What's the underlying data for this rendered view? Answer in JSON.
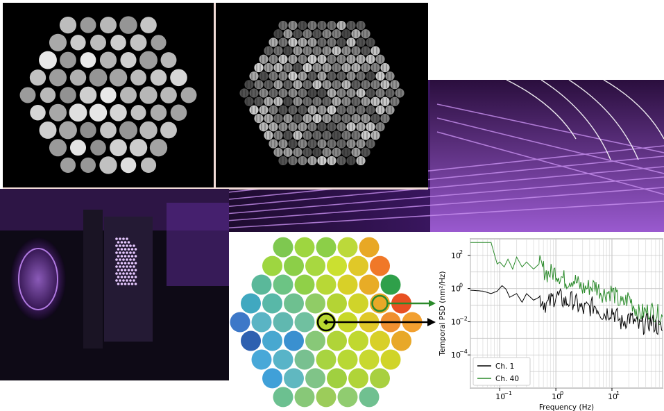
{
  "figure": {
    "intensity_panel": {
      "description_icon": "hexagonal-fiber-bundle-intensity"
    },
    "speckle_panel": {
      "description_icon": "hexagonal-fiber-bundle-fringes"
    },
    "lab_photo": {
      "description_icon": "optical-bench-photo"
    },
    "colors": {
      "purple": "#7a2fc0",
      "ch1": "#000000",
      "ch40": "#2a8a2a",
      "frame": "#f3ddd8"
    }
  },
  "chart_data": {
    "type": "line",
    "title": "",
    "xlabel": "Frequency (Hz)",
    "ylabel": "Temporal PSD (nm²/Hz)",
    "xscale": "log",
    "yscale": "log",
    "xlim": [
      0.03,
      80
    ],
    "ylim": [
      1e-06,
      1000
    ],
    "xticks": [
      {
        "v": 0.1,
        "label": "10",
        "exp": "−1"
      },
      {
        "v": 1,
        "label": "10",
        "exp": "0"
      },
      {
        "v": 10,
        "label": "10",
        "exp": "1"
      }
    ],
    "yticks": [
      {
        "v": 100,
        "label": "10",
        "exp": "2"
      },
      {
        "v": 1,
        "label": "10",
        "exp": "0"
      },
      {
        "v": 0.01,
        "label": "10",
        "exp": "−2"
      },
      {
        "v": 0.0001,
        "label": "10",
        "exp": "−4"
      }
    ],
    "grid": true,
    "legend_position": "bottom-left",
    "series": [
      {
        "name": "Ch. 1",
        "color": "#000000",
        "x": [
          0.03,
          0.05,
          0.07,
          0.09,
          0.11,
          0.13,
          0.15,
          0.2,
          0.25,
          0.3,
          0.4,
          0.5,
          0.7,
          1,
          1.5,
          2,
          3,
          5,
          7,
          10,
          15,
          20,
          30,
          50,
          80
        ],
        "y": [
          0.8,
          0.7,
          0.5,
          0.7,
          1.5,
          0.9,
          0.3,
          0.5,
          0.15,
          0.5,
          0.2,
          0.3,
          0.1,
          0.4,
          0.15,
          0.2,
          0.05,
          0.1,
          0.03,
          0.05,
          0.008,
          0.02,
          0.005,
          0.01,
          0.003
        ]
      },
      {
        "name": "Ch. 40",
        "color": "#2a8a2a",
        "x": [
          0.03,
          0.05,
          0.07,
          0.09,
          0.1,
          0.12,
          0.14,
          0.17,
          0.2,
          0.25,
          0.3,
          0.4,
          0.5,
          0.7,
          1,
          1.5,
          2,
          3,
          5,
          7,
          10,
          15,
          20,
          30,
          50,
          80
        ],
        "y": [
          600,
          600,
          600,
          30,
          40,
          20,
          60,
          15,
          80,
          20,
          40,
          15,
          30,
          8,
          10,
          3,
          4,
          1,
          1.5,
          0.5,
          0.7,
          0.1,
          0.3,
          0.03,
          0.05,
          0.02
        ]
      }
    ]
  },
  "hexmap": {
    "rows": [
      [
        "#7ec850",
        "#9ed640",
        "#8ccf48",
        "#bcd93a",
        "#e8a825"
      ],
      [
        "#9ed640",
        "#8ccf48",
        "#a8d840",
        "#cbe030",
        "#e0c828",
        "#f07828"
      ],
      [
        "#5ab89a",
        "#6cc484",
        "#90d048",
        "#b8d836",
        "#d8d028",
        "#e8ac26",
        "#2fa04a"
      ],
      [
        "#40a8c0",
        "#58b8a8",
        "#6ec090",
        "#90cc66",
        "#b4d434",
        "#d0d42a",
        "#e8a828",
        "#e85022"
      ],
      [
        "#3d78c8",
        "#5ab4c4",
        "#60b8b0",
        "#70c0a0",
        "#b8d830",
        "#c8d828",
        "#e0c828",
        "#f09030",
        "#f2a030"
      ],
      [
        "#2e60b0",
        "#48a8d0",
        "#3a90d0",
        "#88c878",
        "#b0d438",
        "#c0d830",
        "#d8d028",
        "#e8a828"
      ],
      [
        "#48a8d8",
        "#58b4c8",
        "#78c090",
        "#a8d440",
        "#b8d834",
        "#c8d830",
        "#d0d428"
      ],
      [
        "#40a0d8",
        "#60b8c0",
        "#80c488",
        "#a0d040",
        "#b0d438",
        "#a8d040"
      ],
      [
        "#6cc090",
        "#88c878",
        "#9ccc5a",
        "#90cc70",
        "#70c090"
      ]
    ]
  }
}
